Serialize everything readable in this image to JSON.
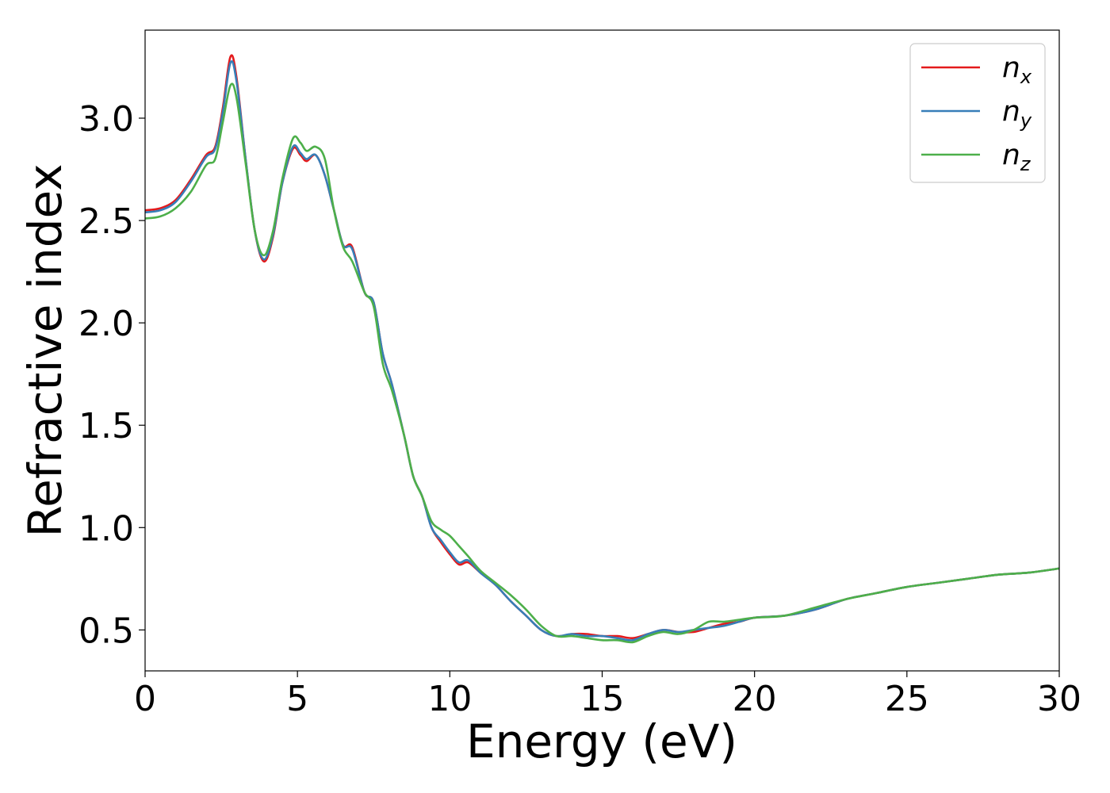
{
  "chart_data": {
    "type": "line",
    "title": "",
    "xlabel": "Energy (eV)",
    "ylabel": "Refractive index",
    "xlim": [
      0,
      30
    ],
    "ylim": [
      0.3,
      3.43
    ],
    "xticks": [
      0,
      5,
      10,
      15,
      20,
      25,
      30
    ],
    "xtick_labels": [
      "0",
      "5",
      "10",
      "15",
      "20",
      "25",
      "30"
    ],
    "yticks": [
      0.5,
      1.0,
      1.5,
      2.0,
      2.5,
      3.0
    ],
    "ytick_labels": [
      "0.5",
      "1.0",
      "1.5",
      "2.0",
      "2.5",
      "3.0"
    ],
    "grid": false,
    "legend_position": "top-right",
    "series": [
      {
        "name": "n",
        "subscript": "x",
        "color": "#e41a1c",
        "points": [
          [
            0,
            2.55
          ],
          [
            0.5,
            2.56
          ],
          [
            1,
            2.6
          ],
          [
            1.5,
            2.7
          ],
          [
            2,
            2.82
          ],
          [
            2.3,
            2.86
          ],
          [
            2.55,
            3.05
          ],
          [
            2.8,
            3.3
          ],
          [
            3,
            3.2
          ],
          [
            3.3,
            2.8
          ],
          [
            3.6,
            2.45
          ],
          [
            3.9,
            2.3
          ],
          [
            4.2,
            2.42
          ],
          [
            4.5,
            2.68
          ],
          [
            4.85,
            2.85
          ],
          [
            5.1,
            2.82
          ],
          [
            5.3,
            2.79
          ],
          [
            5.6,
            2.82
          ],
          [
            5.9,
            2.72
          ],
          [
            6.2,
            2.55
          ],
          [
            6.5,
            2.38
          ],
          [
            6.8,
            2.37
          ],
          [
            7.2,
            2.15
          ],
          [
            7.5,
            2.1
          ],
          [
            7.8,
            1.85
          ],
          [
            8.1,
            1.7
          ],
          [
            8.5,
            1.45
          ],
          [
            8.8,
            1.25
          ],
          [
            9.1,
            1.15
          ],
          [
            9.4,
            1.0
          ],
          [
            9.7,
            0.93
          ],
          [
            10,
            0.87
          ],
          [
            10.3,
            0.82
          ],
          [
            10.6,
            0.83
          ],
          [
            11,
            0.78
          ],
          [
            11.5,
            0.72
          ],
          [
            12,
            0.64
          ],
          [
            12.5,
            0.57
          ],
          [
            13,
            0.5
          ],
          [
            13.5,
            0.47
          ],
          [
            14,
            0.48
          ],
          [
            14.5,
            0.48
          ],
          [
            15,
            0.47
          ],
          [
            15.5,
            0.47
          ],
          [
            16,
            0.46
          ],
          [
            16.5,
            0.48
          ],
          [
            17,
            0.5
          ],
          [
            17.5,
            0.49
          ],
          [
            18,
            0.49
          ],
          [
            18.5,
            0.51
          ],
          [
            19,
            0.53
          ],
          [
            19.5,
            0.54
          ],
          [
            20,
            0.56
          ],
          [
            21,
            0.57
          ],
          [
            22,
            0.6
          ],
          [
            23,
            0.65
          ],
          [
            24,
            0.68
          ],
          [
            25,
            0.71
          ],
          [
            26,
            0.73
          ],
          [
            27,
            0.75
          ],
          [
            28,
            0.77
          ],
          [
            29,
            0.78
          ],
          [
            30,
            0.8
          ]
        ]
      },
      {
        "name": "n",
        "subscript": "y",
        "color": "#377eb8",
        "points": [
          [
            0,
            2.54
          ],
          [
            0.5,
            2.55
          ],
          [
            1,
            2.59
          ],
          [
            1.5,
            2.69
          ],
          [
            2,
            2.81
          ],
          [
            2.3,
            2.85
          ],
          [
            2.55,
            3.03
          ],
          [
            2.8,
            3.27
          ],
          [
            3,
            3.18
          ],
          [
            3.3,
            2.8
          ],
          [
            3.6,
            2.45
          ],
          [
            3.9,
            2.31
          ],
          [
            4.2,
            2.43
          ],
          [
            4.5,
            2.68
          ],
          [
            4.85,
            2.86
          ],
          [
            5.1,
            2.83
          ],
          [
            5.3,
            2.8
          ],
          [
            5.6,
            2.82
          ],
          [
            5.9,
            2.72
          ],
          [
            6.2,
            2.55
          ],
          [
            6.5,
            2.38
          ],
          [
            6.8,
            2.36
          ],
          [
            7.2,
            2.15
          ],
          [
            7.5,
            2.1
          ],
          [
            7.8,
            1.85
          ],
          [
            8.1,
            1.7
          ],
          [
            8.5,
            1.45
          ],
          [
            8.8,
            1.25
          ],
          [
            9.1,
            1.15
          ],
          [
            9.4,
            1.0
          ],
          [
            9.7,
            0.94
          ],
          [
            10,
            0.88
          ],
          [
            10.3,
            0.83
          ],
          [
            10.6,
            0.84
          ],
          [
            11,
            0.78
          ],
          [
            11.5,
            0.72
          ],
          [
            12,
            0.64
          ],
          [
            12.5,
            0.57
          ],
          [
            13,
            0.5
          ],
          [
            13.5,
            0.47
          ],
          [
            14,
            0.48
          ],
          [
            14.5,
            0.47
          ],
          [
            15,
            0.47
          ],
          [
            15.5,
            0.46
          ],
          [
            16,
            0.45
          ],
          [
            16.5,
            0.48
          ],
          [
            17,
            0.5
          ],
          [
            17.5,
            0.49
          ],
          [
            18,
            0.5
          ],
          [
            18.5,
            0.51
          ],
          [
            19,
            0.52
          ],
          [
            19.5,
            0.54
          ],
          [
            20,
            0.56
          ],
          [
            21,
            0.57
          ],
          [
            22,
            0.6
          ],
          [
            23,
            0.65
          ],
          [
            24,
            0.68
          ],
          [
            25,
            0.71
          ],
          [
            26,
            0.73
          ],
          [
            27,
            0.75
          ],
          [
            28,
            0.77
          ],
          [
            29,
            0.78
          ],
          [
            30,
            0.8
          ]
        ]
      },
      {
        "name": "n",
        "subscript": "z",
        "color": "#4daf4a",
        "points": [
          [
            0,
            2.51
          ],
          [
            0.5,
            2.52
          ],
          [
            1,
            2.56
          ],
          [
            1.5,
            2.64
          ],
          [
            2,
            2.77
          ],
          [
            2.3,
            2.8
          ],
          [
            2.55,
            2.98
          ],
          [
            2.8,
            3.16
          ],
          [
            3,
            3.1
          ],
          [
            3.3,
            2.78
          ],
          [
            3.6,
            2.45
          ],
          [
            3.9,
            2.33
          ],
          [
            4.2,
            2.45
          ],
          [
            4.5,
            2.7
          ],
          [
            4.85,
            2.9
          ],
          [
            5.1,
            2.88
          ],
          [
            5.3,
            2.84
          ],
          [
            5.6,
            2.86
          ],
          [
            5.9,
            2.8
          ],
          [
            6.2,
            2.55
          ],
          [
            6.5,
            2.37
          ],
          [
            6.8,
            2.3
          ],
          [
            7.2,
            2.15
          ],
          [
            7.5,
            2.08
          ],
          [
            7.8,
            1.8
          ],
          [
            8.1,
            1.67
          ],
          [
            8.5,
            1.45
          ],
          [
            8.8,
            1.25
          ],
          [
            9.1,
            1.15
          ],
          [
            9.4,
            1.03
          ],
          [
            9.7,
            0.99
          ],
          [
            10,
            0.96
          ],
          [
            10.3,
            0.91
          ],
          [
            10.6,
            0.86
          ],
          [
            11,
            0.79
          ],
          [
            11.5,
            0.73
          ],
          [
            12,
            0.67
          ],
          [
            12.5,
            0.6
          ],
          [
            13,
            0.52
          ],
          [
            13.5,
            0.47
          ],
          [
            14,
            0.47
          ],
          [
            14.5,
            0.46
          ],
          [
            15,
            0.45
          ],
          [
            15.5,
            0.45
          ],
          [
            16,
            0.44
          ],
          [
            16.5,
            0.47
          ],
          [
            17,
            0.49
          ],
          [
            17.5,
            0.48
          ],
          [
            18,
            0.5
          ],
          [
            18.5,
            0.54
          ],
          [
            19,
            0.54
          ],
          [
            19.5,
            0.55
          ],
          [
            20,
            0.56
          ],
          [
            21,
            0.57
          ],
          [
            22,
            0.61
          ],
          [
            23,
            0.65
          ],
          [
            24,
            0.68
          ],
          [
            25,
            0.71
          ],
          [
            26,
            0.73
          ],
          [
            27,
            0.75
          ],
          [
            28,
            0.77
          ],
          [
            29,
            0.78
          ],
          [
            30,
            0.8
          ]
        ]
      }
    ]
  }
}
